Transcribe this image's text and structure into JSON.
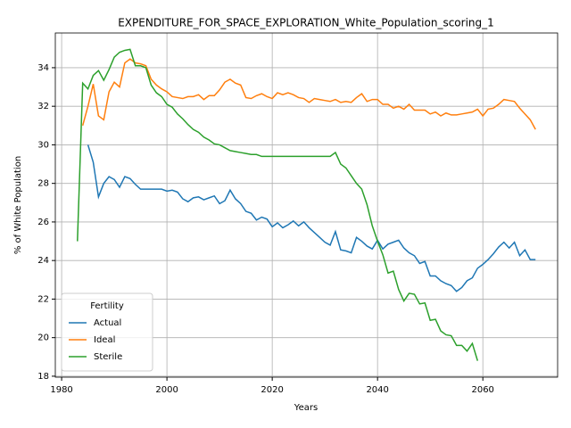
{
  "chart_data": {
    "type": "line",
    "title": "EXPENDITURE_FOR_SPACE_EXPLORATION_White_Population_scoring_1",
    "xlabel": "Years",
    "ylabel": "% of White Population",
    "legend_title": "Fertility",
    "legend": "lower left",
    "grid": true,
    "xlim": [
      1978.8,
      2074.2
    ],
    "xticks": [
      1980,
      2000,
      2020,
      2040,
      2060
    ],
    "ylim": [
      17.95,
      35.8
    ],
    "yticks": [
      18,
      20,
      22,
      24,
      26,
      28,
      30,
      32,
      34
    ],
    "series": [
      {
        "name": "Actual",
        "color": "#1f77b4",
        "x": [
          1985,
          1986,
          1987,
          1988,
          1989,
          1990,
          1991,
          1992,
          1993,
          1994,
          1995,
          1996,
          1997,
          1998,
          1999,
          2000,
          2001,
          2002,
          2003,
          2004,
          2005,
          2006,
          2007,
          2008,
          2009,
          2010,
          2011,
          2012,
          2013,
          2014,
          2015,
          2016,
          2017,
          2018,
          2019,
          2020,
          2021,
          2022,
          2023,
          2024,
          2025,
          2026,
          2027,
          2028,
          2029,
          2030,
          2031,
          2032,
          2033,
          2034,
          2035,
          2036,
          2037,
          2038,
          2039,
          2040,
          2041,
          2042,
          2043,
          2044,
          2045,
          2046,
          2047,
          2048,
          2049,
          2050,
          2051,
          2052,
          2053,
          2054,
          2055,
          2056,
          2057,
          2058,
          2059,
          2060,
          2061,
          2062,
          2063,
          2064,
          2065,
          2066,
          2067,
          2068,
          2069,
          2070
        ],
        "values": [
          30.0,
          29.1,
          27.3,
          28.0,
          28.35,
          28.2,
          27.8,
          28.35,
          28.25,
          27.95,
          27.7,
          27.7,
          27.7,
          27.7,
          27.7,
          27.6,
          27.65,
          27.55,
          27.2,
          27.05,
          27.25,
          27.3,
          27.15,
          27.25,
          27.35,
          26.95,
          27.1,
          27.65,
          27.2,
          26.95,
          26.55,
          26.45,
          26.1,
          26.25,
          26.15,
          25.75,
          25.95,
          25.7,
          25.85,
          26.05,
          25.8,
          26.0,
          25.7,
          25.45,
          25.2,
          24.95,
          24.8,
          25.5,
          24.55,
          24.5,
          24.4,
          25.2,
          25.0,
          24.75,
          24.6,
          25.05,
          24.6,
          24.85,
          24.95,
          25.05,
          24.65,
          24.4,
          24.25,
          23.85,
          23.95,
          23.2,
          23.2,
          22.95,
          22.8,
          22.7,
          22.4,
          22.6,
          22.95,
          23.1,
          23.6,
          23.8,
          24.05,
          24.35,
          24.7,
          24.95,
          24.65,
          24.95,
          24.25,
          24.55,
          24.05,
          24.05
        ]
      },
      {
        "name": "Ideal",
        "color": "#ff7f0e",
        "x": [
          1984,
          1985,
          1986,
          1987,
          1988,
          1989,
          1990,
          1991,
          1992,
          1993,
          1994,
          1995,
          1996,
          1997,
          1998,
          1999,
          2000,
          2001,
          2002,
          2003,
          2004,
          2005,
          2006,
          2007,
          2008,
          2009,
          2010,
          2011,
          2012,
          2013,
          2014,
          2015,
          2016,
          2017,
          2018,
          2019,
          2020,
          2021,
          2022,
          2023,
          2024,
          2025,
          2026,
          2027,
          2028,
          2029,
          2030,
          2031,
          2032,
          2033,
          2034,
          2035,
          2036,
          2037,
          2038,
          2039,
          2040,
          2041,
          2042,
          2043,
          2044,
          2045,
          2046,
          2047,
          2048,
          2049,
          2050,
          2051,
          2052,
          2053,
          2054,
          2055,
          2056,
          2057,
          2058,
          2059,
          2060,
          2061,
          2062,
          2063,
          2064,
          2065,
          2066,
          2067,
          2068,
          2069,
          2070
        ],
        "values": [
          31.0,
          32.0,
          33.15,
          31.5,
          31.3,
          32.75,
          33.25,
          33.0,
          34.25,
          34.45,
          34.25,
          34.2,
          34.1,
          33.4,
          33.1,
          32.9,
          32.75,
          32.5,
          32.45,
          32.4,
          32.5,
          32.5,
          32.6,
          32.35,
          32.55,
          32.55,
          32.85,
          33.25,
          33.4,
          33.2,
          33.1,
          32.45,
          32.4,
          32.55,
          32.65,
          32.5,
          32.4,
          32.7,
          32.6,
          32.7,
          32.6,
          32.45,
          32.4,
          32.2,
          32.4,
          32.35,
          32.3,
          32.25,
          32.35,
          32.2,
          32.25,
          32.2,
          32.45,
          32.65,
          32.25,
          32.35,
          32.35,
          32.1,
          32.1,
          31.9,
          32.0,
          31.85,
          32.1,
          31.8,
          31.8,
          31.8,
          31.6,
          31.7,
          31.5,
          31.65,
          31.55,
          31.55,
          31.6,
          31.65,
          31.7,
          31.85,
          31.5,
          31.85,
          31.9,
          32.1,
          32.35,
          32.3,
          32.25,
          31.9,
          31.6,
          31.3,
          30.8
        ]
      },
      {
        "name": "Sterile",
        "color": "#2ca02c",
        "x": [
          1983,
          1984,
          1985,
          1986,
          1987,
          1988,
          1989,
          1990,
          1991,
          1992,
          1993,
          1994,
          1995,
          1996,
          1997,
          1998,
          1999,
          2000,
          2001,
          2002,
          2003,
          2004,
          2005,
          2006,
          2007,
          2008,
          2009,
          2010,
          2011,
          2012,
          2013,
          2014,
          2015,
          2016,
          2017,
          2018,
          2019,
          2020,
          2021,
          2022,
          2023,
          2024,
          2025,
          2026,
          2027,
          2028,
          2029,
          2030,
          2031,
          2032,
          2033,
          2034,
          2035,
          2036,
          2037,
          2038,
          2039,
          2040,
          2041,
          2042,
          2043,
          2044,
          2045,
          2046,
          2047,
          2048,
          2049,
          2050,
          2051,
          2052,
          2053,
          2054,
          2055,
          2056,
          2057,
          2058,
          2059
        ],
        "values": [
          25.0,
          33.2,
          32.9,
          33.6,
          33.85,
          33.35,
          33.9,
          34.55,
          34.8,
          34.9,
          34.95,
          34.1,
          34.1,
          34.0,
          33.1,
          32.7,
          32.5,
          32.1,
          31.95,
          31.6,
          31.35,
          31.05,
          30.8,
          30.65,
          30.4,
          30.25,
          30.05,
          30.0,
          29.85,
          29.7,
          29.65,
          29.6,
          29.55,
          29.5,
          29.5,
          29.4,
          29.4,
          29.4,
          29.4,
          29.4,
          29.4,
          29.4,
          29.4,
          29.4,
          29.4,
          29.4,
          29.4,
          29.4,
          29.4,
          29.6,
          29.0,
          28.8,
          28.4,
          28.0,
          27.7,
          26.9,
          25.8,
          25.0,
          24.3,
          23.35,
          23.45,
          22.5,
          21.9,
          22.3,
          22.25,
          21.75,
          21.8,
          20.9,
          20.95,
          20.35,
          20.15,
          20.1,
          19.6,
          19.6,
          19.3,
          19.7,
          18.8
        ]
      }
    ]
  }
}
